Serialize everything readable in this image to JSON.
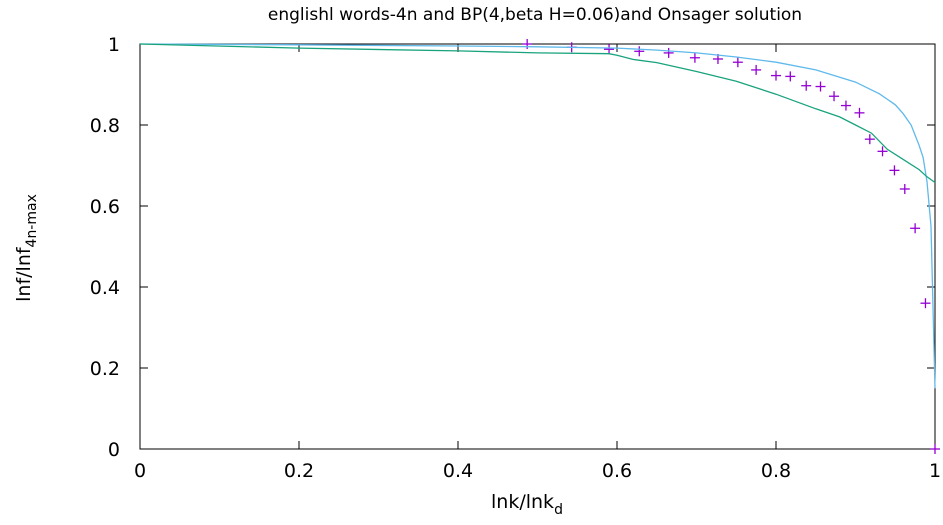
{
  "chart_data": {
    "type": "line",
    "title": "englishl words-4n and BP(4,beta H=0.06)and Onsager solution",
    "xlabel": {
      "main": "lnk/lnk",
      "sub": "d"
    },
    "ylabel": {
      "main": "lnf/lnf",
      "sub": "4n-max"
    },
    "xlim": [
      0,
      1
    ],
    "ylim": [
      0,
      1
    ],
    "xticks": [
      0,
      0.2,
      0.4,
      0.6,
      0.8,
      1
    ],
    "xtick_labels": [
      "0",
      "0.2",
      "0.4",
      "0.6",
      "0.8",
      "1"
    ],
    "yticks": [
      0,
      0.2,
      0.4,
      0.6,
      0.8,
      1
    ],
    "ytick_labels": [
      "0",
      "0.2",
      "0.4",
      "0.6",
      "0.8",
      "1"
    ],
    "grid": false,
    "legend": "none",
    "series": [
      {
        "style": "points",
        "marker": "+",
        "color": "#9400d3",
        "x": [
          0.487,
          0.543,
          0.59,
          0.628,
          0.665,
          0.698,
          0.727,
          0.752,
          0.775,
          0.8,
          0.818,
          0.838,
          0.856,
          0.873,
          0.888,
          0.905,
          0.918,
          0.934,
          0.949,
          0.962,
          0.975,
          0.988,
          1.0
        ],
        "y": [
          1.0,
          0.992,
          0.987,
          0.982,
          0.978,
          0.966,
          0.963,
          0.955,
          0.936,
          0.922,
          0.92,
          0.897,
          0.895,
          0.871,
          0.848,
          0.83,
          0.765,
          0.735,
          0.688,
          0.642,
          0.545,
          0.36,
          0.0
        ]
      },
      {
        "style": "line",
        "color": "#5fb9eb",
        "x": [
          0,
          0.2,
          0.4,
          0.5,
          0.6,
          0.65,
          0.7,
          0.75,
          0.8,
          0.85,
          0.9,
          0.93,
          0.95,
          0.96,
          0.97,
          0.98,
          0.985,
          0.99,
          0.995,
          1.0
        ],
        "y": [
          1.0,
          0.998,
          0.995,
          0.993,
          0.99,
          0.985,
          0.978,
          0.968,
          0.955,
          0.936,
          0.906,
          0.877,
          0.85,
          0.828,
          0.8,
          0.75,
          0.72,
          0.66,
          0.55,
          0.15
        ]
      },
      {
        "style": "line",
        "color": "#19a37d",
        "x": [
          0,
          0.2,
          0.4,
          0.5,
          0.59,
          0.6,
          0.62,
          0.65,
          0.7,
          0.75,
          0.8,
          0.85,
          0.88,
          0.9,
          0.92,
          0.94,
          0.96,
          0.98,
          0.99,
          1.0
        ],
        "y": [
          1.0,
          0.99,
          0.983,
          0.978,
          0.976,
          0.972,
          0.962,
          0.954,
          0.932,
          0.908,
          0.876,
          0.84,
          0.82,
          0.8,
          0.78,
          0.74,
          0.715,
          0.69,
          0.672,
          0.658
        ]
      }
    ]
  }
}
